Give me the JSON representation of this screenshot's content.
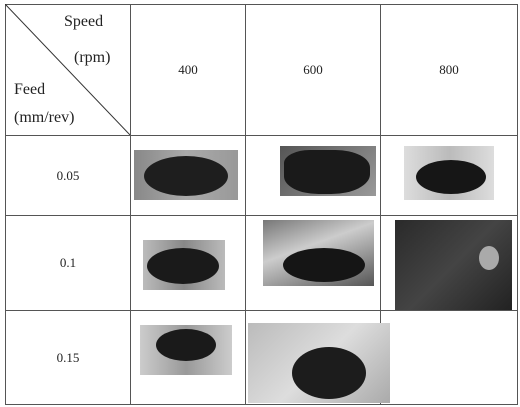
{
  "table": {
    "corner": {
      "speed": "Speed",
      "speed_unit": "(rpm)",
      "feed": "Feed",
      "feed_unit": "(mm/rev)"
    },
    "columns": [
      "400",
      "600",
      "800"
    ],
    "rows": [
      "0.05",
      "0.1",
      "0.15"
    ]
  }
}
